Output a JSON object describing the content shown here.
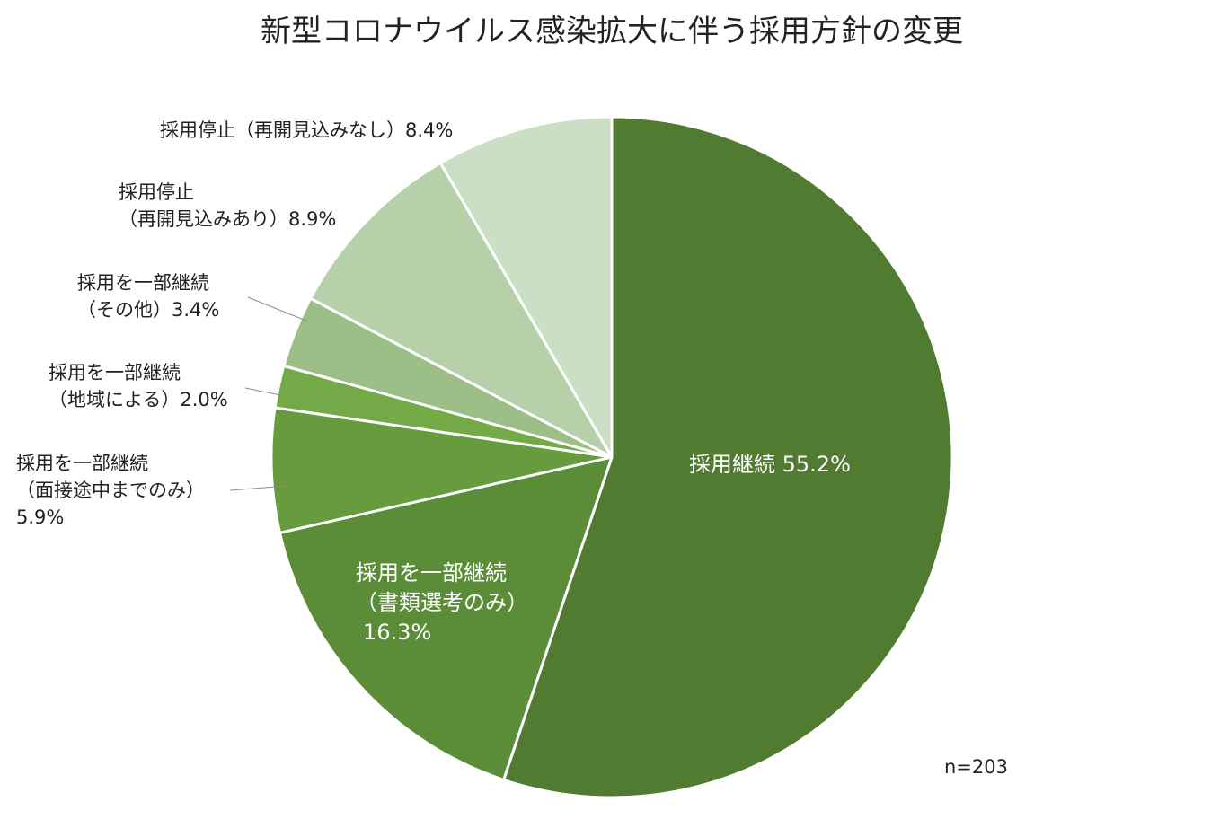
{
  "chart_data": {
    "type": "pie",
    "title": "新型コロナウイルス感染拡大に伴う採用方針の変更",
    "note": "n=203",
    "unit": "%",
    "slices": [
      {
        "name": "採用継続",
        "value": 55.2,
        "color": "#507b31",
        "label_lines": [
          "採用継続 55.2%"
        ]
      },
      {
        "name": "採用を一部継続（書類選考のみ）",
        "value": 16.3,
        "color": "#5b8d38",
        "label_lines": [
          "採用を一部継続",
          "（書類選考のみ）",
          "16.3%"
        ]
      },
      {
        "name": "採用を一部継続（面接途中までのみ）",
        "value": 5.9,
        "color": "#689b3e",
        "label_lines": [
          "採用を一部継続",
          "（面接途中までのみ）",
          "5.9%"
        ]
      },
      {
        "name": "採用を一部継続（地域による）",
        "value": 2.0,
        "color": "#73aa47",
        "label_lines": [
          "採用を一部継続",
          "（地域による）2.0%"
        ]
      },
      {
        "name": "採用を一部継続（その他）",
        "value": 3.4,
        "color": "#9bbf86",
        "label_lines": [
          "採用を一部継続",
          "（その他）3.4%"
        ]
      },
      {
        "name": "採用停止（再開見込みあり）",
        "value": 8.9,
        "color": "#b6d0a9",
        "label_lines": [
          "採用停止",
          "（再開見込みあり）8.9%"
        ]
      },
      {
        "name": "採用停止（再開見込みなし）",
        "value": 8.4,
        "color": "#cbdfc4",
        "label_lines": [
          "採用停止（再開見込みなし）8.4%"
        ]
      }
    ]
  }
}
